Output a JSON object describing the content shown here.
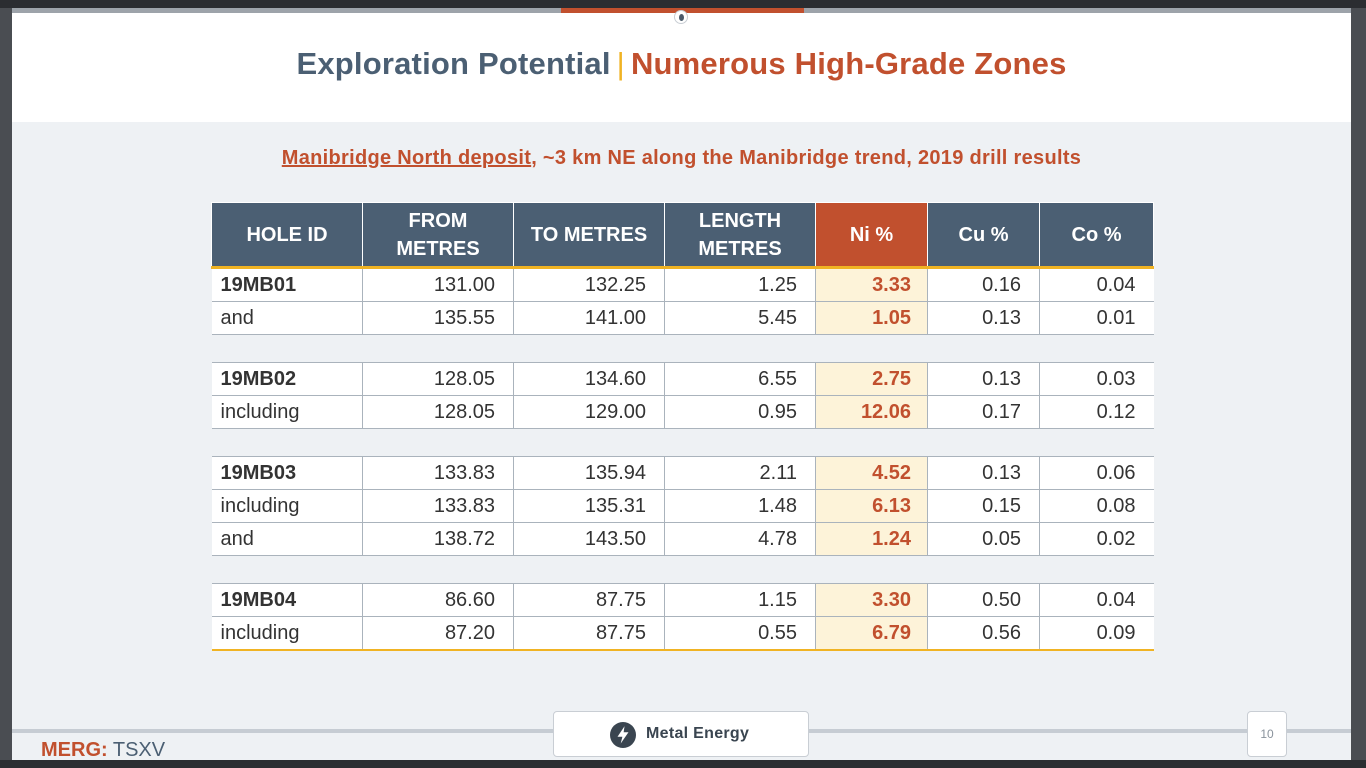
{
  "title": {
    "part1": "Exploration Potential",
    "separator": "|",
    "part2": "Numerous High-Grade Zones"
  },
  "subtitle": {
    "underlined": "Manibridge North deposit",
    "rest": ", ~3 km NE along the Manibridge trend, 2019 drill results"
  },
  "table": {
    "headers": {
      "hole_id": "HOLE ID",
      "from_line1": "FROM",
      "from_line2": "METRES",
      "to": "TO METRES",
      "length_line1": "LENGTH",
      "length_line2": "METRES",
      "ni": "Ni %",
      "cu": "Cu %",
      "co": "Co %"
    },
    "groups": [
      {
        "rows": [
          {
            "hole": "19MB01",
            "from": "131.00",
            "to": "132.25",
            "length": "1.25",
            "ni": "3.33",
            "cu": "0.16",
            "co": "0.04"
          },
          {
            "hole": "and",
            "from": "135.55",
            "to": "141.00",
            "length": "5.45",
            "ni": "1.05",
            "cu": "0.13",
            "co": "0.01"
          }
        ]
      },
      {
        "rows": [
          {
            "hole": "19MB02",
            "from": "128.05",
            "to": "134.60",
            "length": "6.55",
            "ni": "2.75",
            "cu": "0.13",
            "co": "0.03"
          },
          {
            "hole": "including",
            "from": "128.05",
            "to": "129.00",
            "length": "0.95",
            "ni": "12.06",
            "cu": "0.17",
            "co": "0.12"
          }
        ]
      },
      {
        "rows": [
          {
            "hole": "19MB03",
            "from": "133.83",
            "to": "135.94",
            "length": "2.11",
            "ni": "4.52",
            "cu": "0.13",
            "co": "0.06"
          },
          {
            "hole": "including",
            "from": "133.83",
            "to": "135.31",
            "length": "1.48",
            "ni": "6.13",
            "cu": "0.15",
            "co": "0.08"
          },
          {
            "hole": "and",
            "from": "138.72",
            "to": "143.50",
            "length": "4.78",
            "ni": "1.24",
            "cu": "0.05",
            "co": "0.02"
          }
        ]
      },
      {
        "rows": [
          {
            "hole": "19MB04",
            "from": "86.60",
            "to": "87.75",
            "length": "1.15",
            "ni": "3.30",
            "cu": "0.50",
            "co": "0.04"
          },
          {
            "hole": "including",
            "from": "87.20",
            "to": "87.75",
            "length": "0.55",
            "ni": "6.79",
            "cu": "0.56",
            "co": "0.09"
          }
        ]
      }
    ]
  },
  "footer": {
    "ticker_symbol": "MERG:",
    "exchange": "TSXV",
    "logo_text": "Metal Energy",
    "logo_icon": "lightning-bolt-icon",
    "page_number": "10"
  },
  "colors": {
    "navy": "#4b5f73",
    "accent_orange": "#c1502e",
    "gold": "#f0b323",
    "ni_cell_bg": "#fdf3d9"
  }
}
